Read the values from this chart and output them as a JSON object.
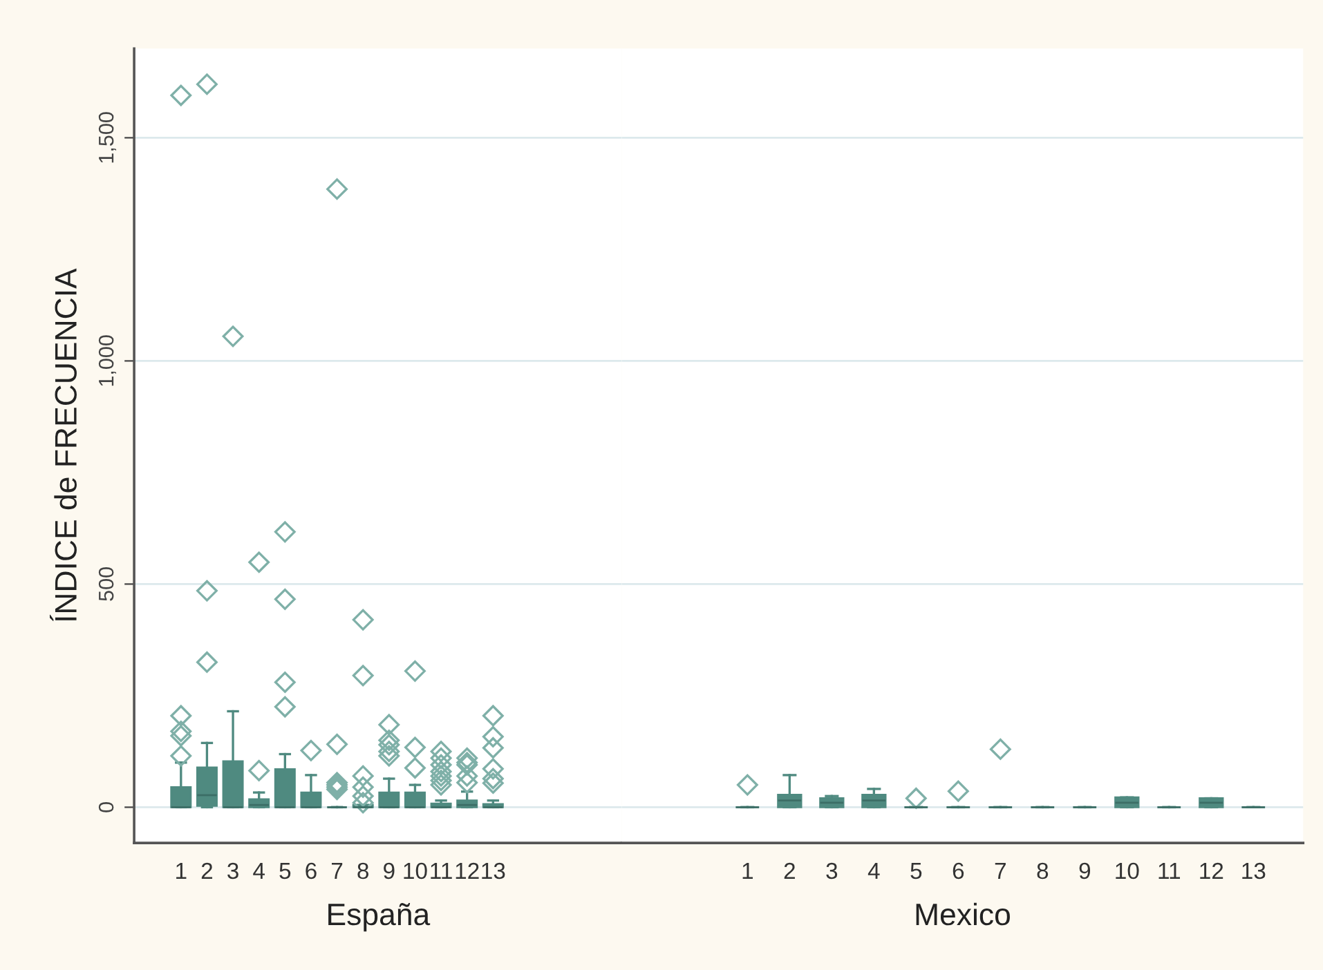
{
  "chart_data": [
    {
      "type": "box",
      "categories": [
        "1",
        "2",
        "3",
        "4",
        "5",
        "6",
        "7",
        "8",
        "9",
        "10",
        "11",
        "12",
        "13"
      ],
      "xlabel": "España",
      "ylabel": "ÍNDICE de FRECUENCIA",
      "ylim": [
        -80,
        1700
      ],
      "yticks": [
        0,
        500,
        {
          "value": 1000,
          "label": "1,000"
        },
        {
          "value": 1500,
          "label": "1,500"
        }
      ],
      "grid": "y",
      "marker": "diamond",
      "series": [
        {
          "color": "#4f8a80",
          "boxes": [
            {
              "low": 0,
              "q1": 0,
              "median": 0,
              "q3": 45,
              "high": 100,
              "outliers": [
                115,
                160,
                170,
                205,
                1595
              ]
            },
            {
              "low": 0,
              "q1": 3,
              "median": 27,
              "q3": 89,
              "high": 144,
              "outliers": [
                325,
                485,
                1620
              ]
            },
            {
              "low": 0,
              "q1": 0,
              "median": 0,
              "q3": 103,
              "high": 215,
              "outliers": [
                1055
              ]
            },
            {
              "low": 0,
              "q1": 0,
              "median": 5,
              "q3": 18,
              "high": 33,
              "outliers": [
                82,
                549
              ]
            },
            {
              "low": 0,
              "q1": 0,
              "median": 0,
              "q3": 85,
              "high": 119,
              "outliers": [
                225,
                280,
                466,
                617
              ]
            },
            {
              "low": 0,
              "q1": 0,
              "median": 0,
              "q3": 33,
              "high": 72,
              "outliers": [
                127
              ]
            },
            {
              "low": 0,
              "q1": 0,
              "median": 0,
              "q3": 0,
              "high": 0,
              "outliers": [
                40,
                45,
                50,
                55,
                141,
                1385
              ]
            },
            {
              "low": 0,
              "q1": 0,
              "median": 0,
              "q3": 5,
              "high": 5,
              "outliers": [
                10,
                25,
                45,
                70,
                295,
                420
              ]
            },
            {
              "low": 0,
              "q1": 0,
              "median": 0,
              "q3": 33,
              "high": 64,
              "outliers": [
                115,
                125,
                140,
                150,
                185
              ]
            },
            {
              "low": 0,
              "q1": 0,
              "median": 0,
              "q3": 33,
              "high": 50,
              "outliers": [
                88,
                134,
                305
              ]
            },
            {
              "low": 0,
              "q1": 0,
              "median": 0,
              "q3": 8,
              "high": 15,
              "outliers": [
                50,
                60,
                70,
                80,
                95,
                110,
                125
              ]
            },
            {
              "low": 0,
              "q1": 0,
              "median": 5,
              "q3": 15,
              "high": 35,
              "outliers": [
                55,
                70,
                95,
                100,
                110
              ]
            },
            {
              "low": 0,
              "q1": 0,
              "median": 0,
              "q3": 7,
              "high": 15,
              "outliers": [
                54,
                64,
                86,
                133,
                158,
                205
              ]
            }
          ]
        }
      ]
    },
    {
      "type": "box",
      "categories": [
        "1",
        "2",
        "3",
        "4",
        "5",
        "6",
        "7",
        "8",
        "9",
        "10",
        "11",
        "12",
        "13"
      ],
      "xlabel": "Mexico",
      "ylim": [
        -80,
        1700
      ],
      "yticks": [
        0,
        500,
        1000,
        1500
      ],
      "grid": "y",
      "marker": "diamond",
      "tick_labels": "x",
      "series": [
        {
          "color": "#4f8a80",
          "boxes": [
            {
              "low": 0,
              "q1": 0,
              "median": 0,
              "q3": 0,
              "high": 0,
              "outliers": [
                50
              ]
            },
            {
              "low": 0,
              "q1": 0,
              "median": 15,
              "q3": 28,
              "high": 72
            },
            {
              "low": 0,
              "q1": 0,
              "median": 10,
              "q3": 20,
              "high": 25
            },
            {
              "low": 0,
              "q1": 0,
              "median": 15,
              "q3": 28,
              "high": 41
            },
            {
              "low": 0,
              "q1": 0,
              "median": 0,
              "q3": 0,
              "high": 0,
              "outliers": [
                20
              ]
            },
            {
              "low": 0,
              "q1": 0,
              "median": 0,
              "q3": 0,
              "high": 0,
              "outliers": [
                36
              ]
            },
            {
              "low": 0,
              "q1": 0,
              "median": 0,
              "q3": 0,
              "high": 0,
              "outliers": [
                130
              ]
            },
            {
              "low": 0,
              "q1": 0,
              "median": 0,
              "q3": 0,
              "high": 0
            },
            {
              "low": 0,
              "q1": 0,
              "median": 0,
              "q3": 0,
              "high": 0
            },
            {
              "low": 0,
              "q1": 0,
              "median": 10,
              "q3": 22,
              "high": 22
            },
            {
              "low": 0,
              "q1": 0,
              "median": 0,
              "q3": 0,
              "high": 0
            },
            {
              "low": 0,
              "q1": 0,
              "median": 10,
              "q3": 20,
              "high": 20
            },
            {
              "low": 0,
              "q1": 0,
              "median": 0,
              "q3": 0,
              "high": 0
            }
          ]
        }
      ]
    }
  ]
}
